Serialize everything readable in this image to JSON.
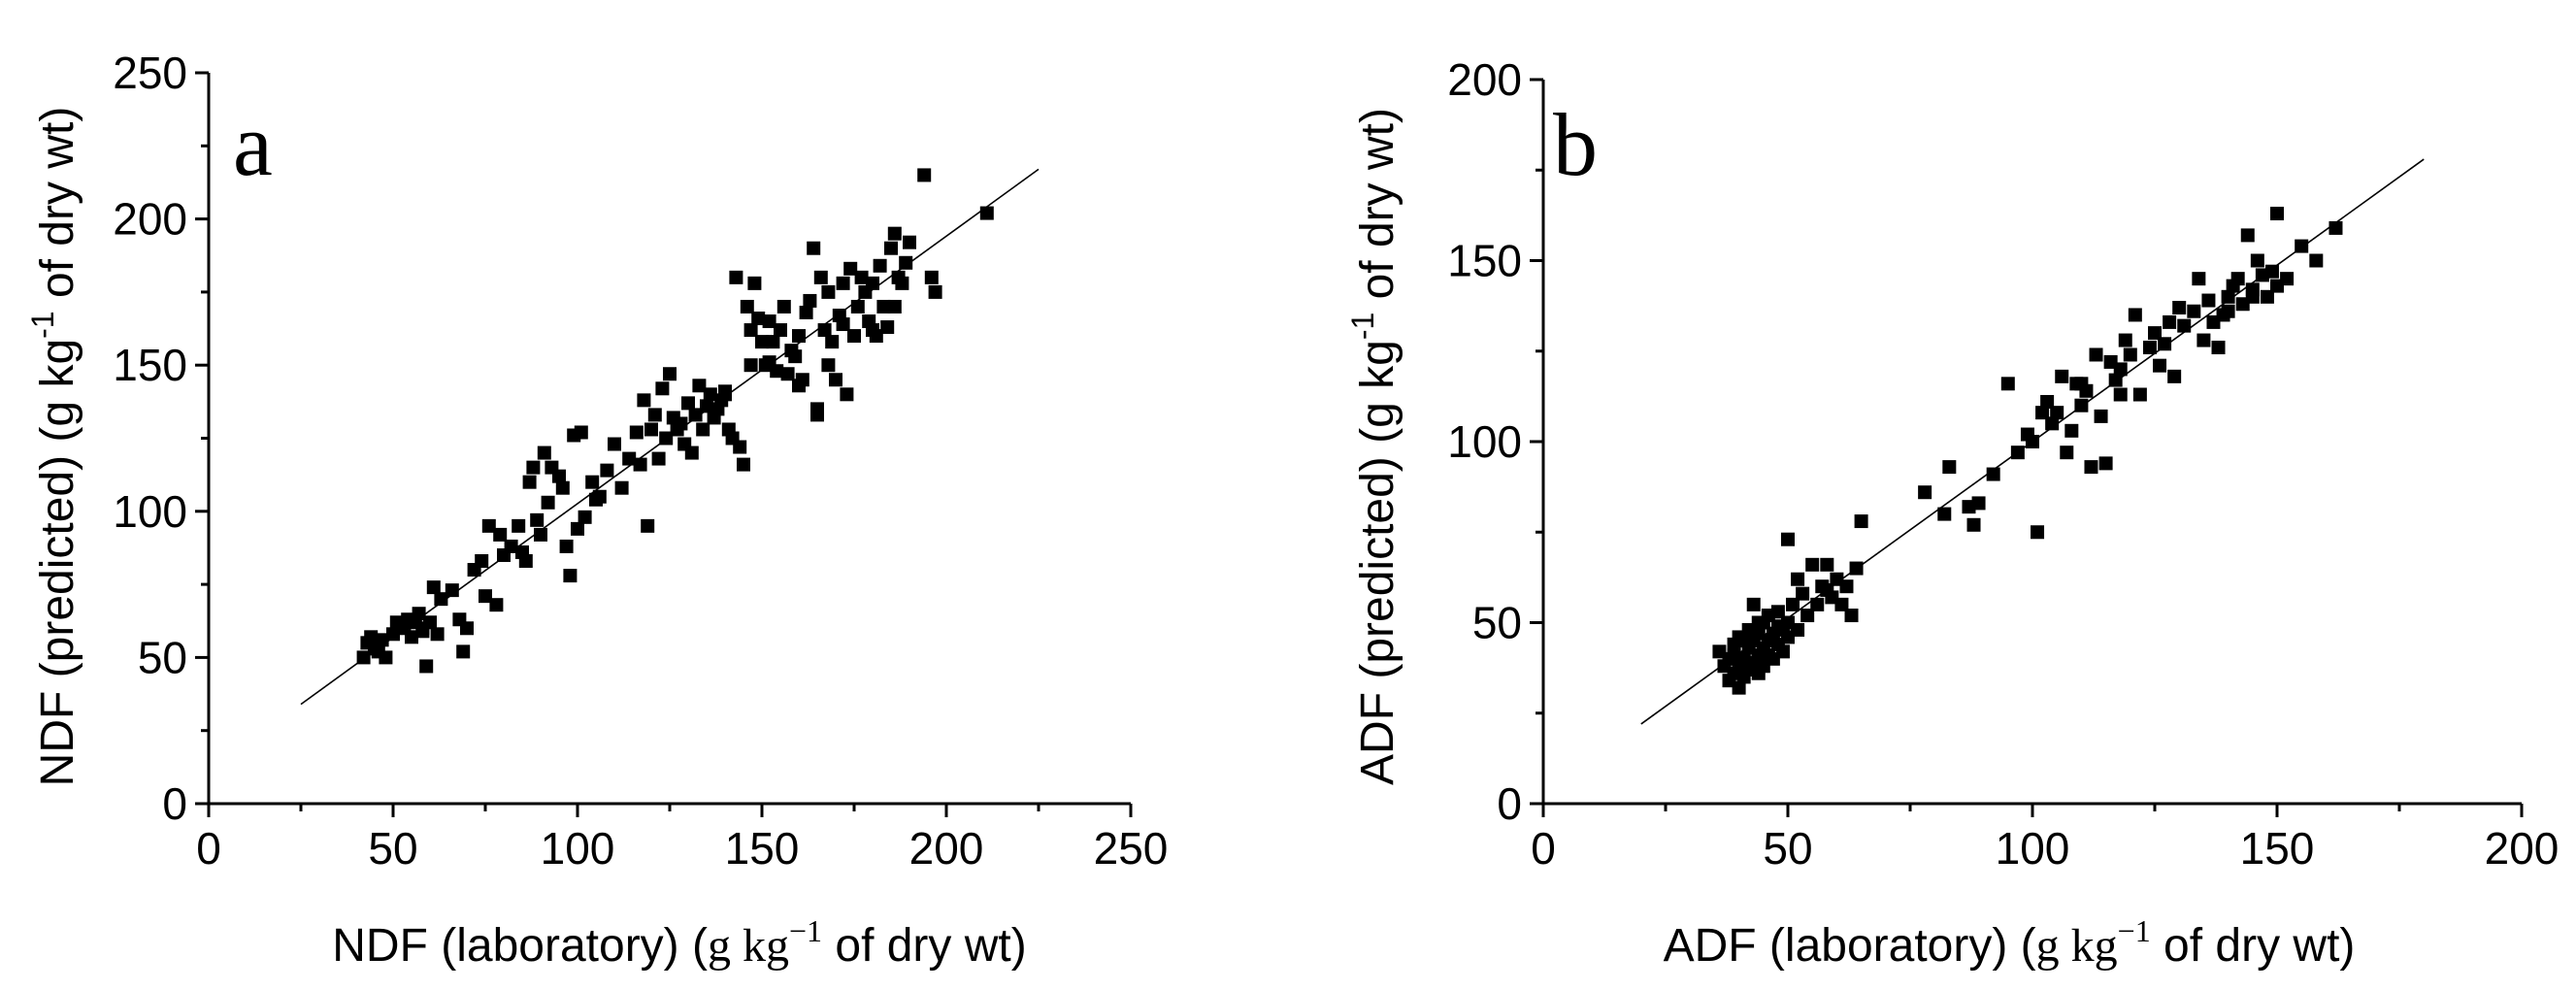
{
  "chart_data": [
    {
      "type": "scatter",
      "panel_label": "a",
      "xlabel": {
        "pre": "NDF (laboratory) (",
        "unit_base": "g kg",
        "unit_exp": "−1",
        "post": " of dry wt)"
      },
      "ylabel": {
        "pre": "NDF (predicted) (g kg",
        "unit_exp": "-1",
        "post": " of dry wt)"
      },
      "xlim": [
        0,
        250
      ],
      "ylim": [
        0,
        250
      ],
      "xticks": [
        0,
        50,
        100,
        150,
        200,
        250
      ],
      "yticks": [
        0,
        50,
        100,
        150,
        200,
        250
      ],
      "fit_line": {
        "x1": 25,
        "y1": 34,
        "x2": 225,
        "y2": 217
      },
      "points": [
        [
          42,
          50
        ],
        [
          43,
          55
        ],
        [
          44,
          57
        ],
        [
          45,
          53
        ],
        [
          46,
          52
        ],
        [
          47,
          56
        ],
        [
          48,
          50
        ],
        [
          50,
          58
        ],
        [
          51,
          62
        ],
        [
          53,
          60
        ],
        [
          54,
          63
        ],
        [
          55,
          57
        ],
        [
          56,
          62
        ],
        [
          57,
          65
        ],
        [
          58,
          60
        ],
        [
          59,
          47
        ],
        [
          60,
          62
        ],
        [
          61,
          74
        ],
        [
          62,
          58
        ],
        [
          63,
          70
        ],
        [
          66,
          73
        ],
        [
          68,
          63
        ],
        [
          69,
          52
        ],
        [
          70,
          60
        ],
        [
          72,
          80
        ],
        [
          74,
          83
        ],
        [
          76,
          95
        ],
        [
          78,
          68
        ],
        [
          79,
          92
        ],
        [
          80,
          85
        ],
        [
          82,
          88
        ],
        [
          84,
          95
        ],
        [
          86,
          83
        ],
        [
          87,
          110
        ],
        [
          88,
          115
        ],
        [
          89,
          97
        ],
        [
          90,
          92
        ],
        [
          91,
          120
        ],
        [
          92,
          103
        ],
        [
          93,
          115
        ],
        [
          95,
          112
        ],
        [
          96,
          108
        ],
        [
          97,
          88
        ],
        [
          98,
          78
        ],
        [
          99,
          126
        ],
        [
          100,
          94
        ],
        [
          101,
          127
        ],
        [
          102,
          98
        ],
        [
          104,
          110
        ],
        [
          106,
          105
        ],
        [
          108,
          114
        ],
        [
          110,
          123
        ],
        [
          112,
          108
        ],
        [
          114,
          118
        ],
        [
          116,
          127
        ],
        [
          118,
          138
        ],
        [
          119,
          95
        ],
        [
          120,
          128
        ],
        [
          121,
          133
        ],
        [
          122,
          118
        ],
        [
          123,
          142
        ],
        [
          124,
          125
        ],
        [
          125,
          147
        ],
        [
          126,
          132
        ],
        [
          127,
          128
        ],
        [
          128,
          130
        ],
        [
          129,
          123
        ],
        [
          130,
          137
        ],
        [
          131,
          120
        ],
        [
          132,
          133
        ],
        [
          133,
          143
        ],
        [
          134,
          128
        ],
        [
          135,
          136
        ],
        [
          136,
          140
        ],
        [
          137,
          132
        ],
        [
          138,
          135
        ],
        [
          139,
          138
        ],
        [
          140,
          140
        ],
        [
          141,
          128
        ],
        [
          142,
          125
        ],
        [
          143,
          180
        ],
        [
          144,
          122
        ],
        [
          145,
          116
        ],
        [
          146,
          170
        ],
        [
          147,
          162
        ],
        [
          148,
          178
        ],
        [
          149,
          166
        ],
        [
          150,
          158
        ],
        [
          151,
          150
        ],
        [
          152,
          165
        ],
        [
          153,
          158
        ],
        [
          154,
          148
        ],
        [
          155,
          162
        ],
        [
          156,
          170
        ],
        [
          157,
          147
        ],
        [
          158,
          155
        ],
        [
          159,
          153
        ],
        [
          160,
          160
        ],
        [
          161,
          145
        ],
        [
          162,
          168
        ],
        [
          163,
          172
        ],
        [
          164,
          190
        ],
        [
          165,
          133
        ],
        [
          166,
          180
        ],
        [
          167,
          162
        ],
        [
          168,
          175
        ],
        [
          169,
          158
        ],
        [
          170,
          145
        ],
        [
          171,
          167
        ],
        [
          172,
          178
        ],
        [
          173,
          140
        ],
        [
          174,
          183
        ],
        [
          175,
          160
        ],
        [
          176,
          170
        ],
        [
          177,
          180
        ],
        [
          178,
          175
        ],
        [
          179,
          165
        ],
        [
          180,
          178
        ],
        [
          181,
          160
        ],
        [
          182,
          184
        ],
        [
          183,
          170
        ],
        [
          184,
          163
        ],
        [
          185,
          190
        ],
        [
          186,
          195
        ],
        [
          187,
          180
        ],
        [
          188,
          178
        ],
        [
          189,
          185
        ],
        [
          190,
          192
        ],
        [
          194,
          215
        ],
        [
          196,
          180
        ],
        [
          197,
          175
        ],
        [
          211,
          202
        ],
        [
          58,
          59
        ],
        [
          75,
          71
        ],
        [
          85,
          86
        ],
        [
          105,
          104
        ],
        [
          117,
          116
        ],
        [
          140,
          141
        ],
        [
          147,
          150
        ],
        [
          152,
          151
        ],
        [
          160,
          143
        ],
        [
          165,
          135
        ],
        [
          168,
          150
        ],
        [
          172,
          164
        ],
        [
          180,
          162
        ],
        [
          186,
          170
        ]
      ]
    },
    {
      "type": "scatter",
      "panel_label": "b",
      "xlabel": {
        "pre": "ADF (laboratory) (",
        "unit_base": "g kg",
        "unit_exp": "−1",
        "post": "  of dry wt)"
      },
      "ylabel": {
        "pre": "ADF (predicted) (g kg",
        "unit_exp": "-1",
        "post": " of dry wt)"
      },
      "xlim": [
        0,
        200
      ],
      "ylim": [
        0,
        200
      ],
      "xticks": [
        0,
        50,
        100,
        150,
        200
      ],
      "yticks": [
        0,
        50,
        100,
        150,
        200
      ],
      "fit_line": {
        "x1": 20,
        "y1": 22,
        "x2": 180,
        "y2": 178
      },
      "points": [
        [
          36,
          42
        ],
        [
          37,
          38
        ],
        [
          38,
          34
        ],
        [
          38,
          40
        ],
        [
          39,
          44
        ],
        [
          39,
          36
        ],
        [
          40,
          32
        ],
        [
          40,
          38
        ],
        [
          40,
          46
        ],
        [
          41,
          40
        ],
        [
          41,
          35
        ],
        [
          42,
          37
        ],
        [
          42,
          43
        ],
        [
          42,
          48
        ],
        [
          43,
          39
        ],
        [
          43,
          45
        ],
        [
          43,
          55
        ],
        [
          44,
          41
        ],
        [
          44,
          36
        ],
        [
          44,
          47
        ],
        [
          45,
          43
        ],
        [
          45,
          50
        ],
        [
          45,
          38
        ],
        [
          46,
          45
        ],
        [
          46,
          52
        ],
        [
          47,
          40
        ],
        [
          47,
          47
        ],
        [
          48,
          44
        ],
        [
          48,
          53
        ],
        [
          49,
          48
        ],
        [
          49,
          42
        ],
        [
          50,
          50
        ],
        [
          50,
          46
        ],
        [
          50,
          73
        ],
        [
          51,
          55
        ],
        [
          52,
          48
        ],
        [
          53,
          58
        ],
        [
          54,
          52
        ],
        [
          55,
          66
        ],
        [
          56,
          55
        ],
        [
          57,
          60
        ],
        [
          58,
          66
        ],
        [
          59,
          57
        ],
        [
          60,
          62
        ],
        [
          61,
          55
        ],
        [
          62,
          60
        ],
        [
          63,
          52
        ],
        [
          64,
          65
        ],
        [
          65,
          78
        ],
        [
          78,
          86
        ],
        [
          82,
          80
        ],
        [
          83,
          93
        ],
        [
          87,
          82
        ],
        [
          88,
          77
        ],
        [
          89,
          83
        ],
        [
          92,
          91
        ],
        [
          95,
          116
        ],
        [
          97,
          97
        ],
        [
          99,
          102
        ],
        [
          100,
          100
        ],
        [
          101,
          75
        ],
        [
          102,
          108
        ],
        [
          103,
          111
        ],
        [
          104,
          105
        ],
        [
          105,
          108
        ],
        [
          106,
          118
        ],
        [
          107,
          97
        ],
        [
          108,
          103
        ],
        [
          109,
          116
        ],
        [
          110,
          110
        ],
        [
          111,
          114
        ],
        [
          112,
          93
        ],
        [
          113,
          124
        ],
        [
          114,
          107
        ],
        [
          115,
          94
        ],
        [
          116,
          122
        ],
        [
          117,
          117
        ],
        [
          118,
          113
        ],
        [
          119,
          128
        ],
        [
          120,
          124
        ],
        [
          121,
          135
        ],
        [
          122,
          113
        ],
        [
          124,
          126
        ],
        [
          125,
          130
        ],
        [
          126,
          121
        ],
        [
          127,
          127
        ],
        [
          128,
          133
        ],
        [
          129,
          118
        ],
        [
          130,
          137
        ],
        [
          131,
          132
        ],
        [
          133,
          136
        ],
        [
          134,
          145
        ],
        [
          135,
          128
        ],
        [
          136,
          139
        ],
        [
          137,
          133
        ],
        [
          138,
          126
        ],
        [
          139,
          135
        ],
        [
          140,
          140
        ],
        [
          141,
          143
        ],
        [
          142,
          145
        ],
        [
          143,
          138
        ],
        [
          144,
          157
        ],
        [
          145,
          142
        ],
        [
          146,
          150
        ],
        [
          147,
          146
        ],
        [
          148,
          140
        ],
        [
          149,
          147
        ],
        [
          150,
          163
        ],
        [
          152,
          145
        ],
        [
          155,
          154
        ],
        [
          158,
          150
        ],
        [
          162,
          159
        ],
        [
          39,
          41
        ],
        [
          41,
          45
        ],
        [
          44,
          50
        ],
        [
          46,
          41
        ],
        [
          48,
          49
        ],
        [
          52,
          62
        ],
        [
          58,
          59
        ],
        [
          110,
          116
        ],
        [
          118,
          120
        ],
        [
          140,
          136
        ],
        [
          145,
          140
        ],
        [
          150,
          143
        ]
      ]
    }
  ]
}
